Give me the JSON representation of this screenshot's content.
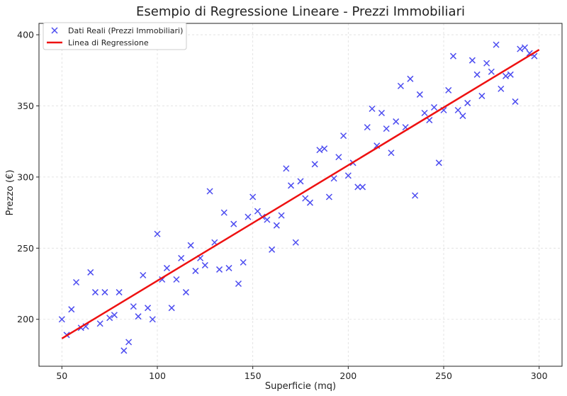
{
  "chart_data": {
    "type": "scatter",
    "title": "Esempio di Regressione Lineare - Prezzi Immobiliari",
    "xlabel": "Superficie (mq)",
    "ylabel": "Prezzo (€)",
    "xlim": [
      38,
      312
    ],
    "ylim": [
      167,
      408
    ],
    "x_ticks": [
      50,
      100,
      150,
      200,
      250,
      300
    ],
    "y_ticks": [
      200,
      250,
      300,
      350,
      400
    ],
    "grid": true,
    "legend_position": "top-left",
    "series": [
      {
        "name": "Dati Reali (Prezzi Immobiliari)",
        "kind": "scatter",
        "marker": "x",
        "color": "#4c4cf0",
        "points": [
          [
            50,
            200
          ],
          [
            52.5,
            189
          ],
          [
            55,
            207
          ],
          [
            57.5,
            226
          ],
          [
            60,
            194
          ],
          [
            62.5,
            195
          ],
          [
            65,
            233
          ],
          [
            67.5,
            219
          ],
          [
            70,
            197
          ],
          [
            72.5,
            219
          ],
          [
            75,
            201
          ],
          [
            77.5,
            203
          ],
          [
            80,
            219
          ],
          [
            82.5,
            178
          ],
          [
            85,
            184
          ],
          [
            87.5,
            209
          ],
          [
            90,
            202
          ],
          [
            92.5,
            231
          ],
          [
            95,
            208
          ],
          [
            97.5,
            200
          ],
          [
            100,
            260
          ],
          [
            102.5,
            228
          ],
          [
            105,
            236
          ],
          [
            107.5,
            208
          ],
          [
            110,
            228
          ],
          [
            112.5,
            243
          ],
          [
            115,
            219
          ],
          [
            117.5,
            252
          ],
          [
            120,
            234
          ],
          [
            122.5,
            243
          ],
          [
            125,
            238
          ],
          [
            127.5,
            290
          ],
          [
            130,
            254
          ],
          [
            132.5,
            235
          ],
          [
            135,
            275
          ],
          [
            137.5,
            236
          ],
          [
            140,
            267
          ],
          [
            142.5,
            225
          ],
          [
            145,
            240
          ],
          [
            147.5,
            272
          ],
          [
            150,
            286
          ],
          [
            152.5,
            276
          ],
          [
            155,
            272
          ],
          [
            157.5,
            270
          ],
          [
            160,
            249
          ],
          [
            162.5,
            266
          ],
          [
            165,
            273
          ],
          [
            167.5,
            306
          ],
          [
            170,
            294
          ],
          [
            172.5,
            254
          ],
          [
            175,
            297
          ],
          [
            177.5,
            285
          ],
          [
            180,
            282
          ],
          [
            182.5,
            309
          ],
          [
            185,
            319
          ],
          [
            187.5,
            320
          ],
          [
            190,
            286
          ],
          [
            192.5,
            299
          ],
          [
            195,
            314
          ],
          [
            197.5,
            329
          ],
          [
            200,
            301
          ],
          [
            202.5,
            310
          ],
          [
            205,
            293
          ],
          [
            207.5,
            293
          ],
          [
            210,
            335
          ],
          [
            212.5,
            348
          ],
          [
            215,
            322
          ],
          [
            217.5,
            345
          ],
          [
            220,
            334
          ],
          [
            222.5,
            317
          ],
          [
            225,
            339
          ],
          [
            227.5,
            364
          ],
          [
            230,
            335
          ],
          [
            232.5,
            369
          ],
          [
            235,
            287
          ],
          [
            237.5,
            358
          ],
          [
            240,
            345
          ],
          [
            242.5,
            340
          ],
          [
            245,
            349
          ],
          [
            247.5,
            310
          ],
          [
            250,
            347
          ],
          [
            252.5,
            361
          ],
          [
            255,
            385
          ],
          [
            257.5,
            347
          ],
          [
            260,
            343
          ],
          [
            262.5,
            352
          ],
          [
            265,
            382
          ],
          [
            267.5,
            372
          ],
          [
            270,
            357
          ],
          [
            272.5,
            380
          ],
          [
            275,
            374
          ],
          [
            277.5,
            393
          ],
          [
            280,
            362
          ],
          [
            282.5,
            371
          ],
          [
            285,
            372
          ],
          [
            287.5,
            353
          ],
          [
            290,
            390
          ],
          [
            292.5,
            391
          ],
          [
            295,
            387
          ],
          [
            297.5,
            385
          ]
        ]
      },
      {
        "name": "Linea di Regressione",
        "kind": "line",
        "color": "#ee1111",
        "points": [
          [
            50,
            186.5
          ],
          [
            300,
            389.5
          ]
        ]
      }
    ]
  }
}
